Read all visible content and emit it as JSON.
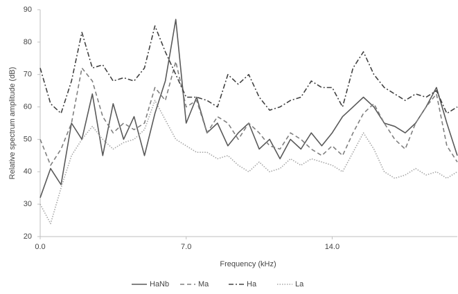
{
  "chart_data": {
    "type": "line",
    "x_label": "Frequency (kHz)",
    "y_label": "Relative spectrum amplitude (dB)",
    "x": [
      0,
      0.5,
      1,
      1.5,
      2,
      2.5,
      3,
      3.5,
      4,
      4.5,
      5,
      5.5,
      6,
      6.5,
      7,
      7.5,
      8,
      8.5,
      9,
      9.5,
      10,
      10.5,
      11,
      11.5,
      12,
      12.5,
      13,
      13.5,
      14,
      14.5,
      15,
      15.5,
      16,
      16.5,
      17,
      17.5,
      18,
      18.5,
      19,
      19.5,
      20
    ],
    "series": [
      {
        "name": "HaNb",
        "color": "#595959",
        "style": "solid",
        "values": [
          32,
          41,
          36,
          55,
          50,
          64,
          45,
          61,
          50,
          57,
          45,
          58,
          68,
          87,
          55,
          63,
          52,
          55,
          48,
          52,
          55,
          47,
          50,
          44,
          50,
          47,
          52,
          48,
          52,
          57,
          60,
          63,
          60,
          55,
          54,
          52,
          55,
          60,
          66,
          55,
          45
        ]
      },
      {
        "name": "Ma",
        "color": "#7f7f7f",
        "style": "dashed",
        "values": [
          50,
          42,
          47,
          55,
          72,
          68,
          57,
          52,
          55,
          53,
          55,
          66,
          62,
          74,
          60,
          62,
          52,
          57,
          55,
          50,
          55,
          52,
          48,
          47,
          52,
          50,
          47,
          45,
          48,
          45,
          52,
          58,
          61,
          55,
          50,
          47,
          55,
          60,
          64,
          48,
          43
        ]
      },
      {
        "name": "Ha",
        "color": "#404040",
        "style": "dashdot",
        "values": [
          72,
          61,
          58,
          68,
          83,
          72,
          73,
          68,
          69,
          68,
          72,
          85,
          77,
          70,
          63,
          63,
          62,
          60,
          70,
          67,
          70,
          63,
          59,
          60,
          62,
          63,
          68,
          66,
          66,
          60,
          72,
          77,
          70,
          66,
          64,
          62,
          64,
          63,
          65,
          58,
          60
        ]
      },
      {
        "name": "La",
        "color": "#a6a6a6",
        "style": "dotted",
        "values": [
          30,
          24,
          35,
          45,
          50,
          54,
          50,
          47,
          49,
          50,
          53,
          62,
          56,
          50,
          48,
          46,
          46,
          44,
          45,
          42,
          40,
          43,
          40,
          41,
          44,
          42,
          44,
          43,
          42,
          40,
          46,
          52,
          47,
          40,
          38,
          39,
          41,
          39,
          40,
          38,
          40
        ]
      }
    ],
    "xlim": [
      0,
      20
    ],
    "xticks": [
      {
        "value": 0,
        "label": "0.0"
      },
      {
        "value": 7,
        "label": "7.0"
      },
      {
        "value": 14,
        "label": "14.0"
      }
    ],
    "ylim": [
      20,
      90
    ],
    "yticks": [
      20,
      30,
      40,
      50,
      60,
      70,
      80,
      90
    ],
    "grid": false,
    "legend": "bottom"
  }
}
